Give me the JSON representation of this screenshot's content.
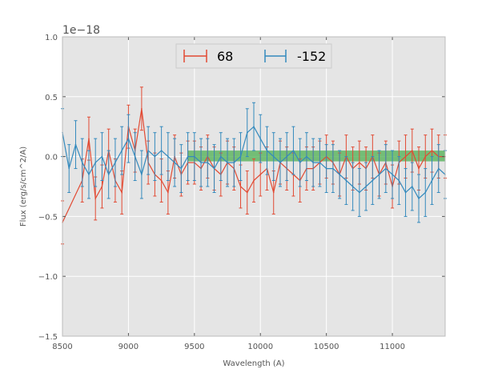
{
  "chart_data": {
    "type": "line",
    "title": "",
    "xlabel": "Wavelength (A)",
    "ylabel": "Flux (erg/s/cm^2/A)",
    "offset_label": "1e−18",
    "xlim": [
      8500,
      11400
    ],
    "ylim": [
      -1.5,
      1.0
    ],
    "xticks": [
      8500,
      9000,
      9500,
      10000,
      10500,
      11000
    ],
    "xtick_labels": [
      "8500",
      "9000",
      "9500",
      "10000",
      "10500",
      "11000"
    ],
    "yticks": [
      1.0,
      0.5,
      0.0,
      -0.5,
      -1.0,
      -1.5
    ],
    "ytick_labels": [
      "1.0",
      "0.5",
      "0.0",
      "−0.5",
      "−1.0",
      "−1.5"
    ],
    "grid": true,
    "legend_placement": "upper-center",
    "band": {
      "x_start": 9450,
      "x_end": 11400,
      "y_low": -0.04,
      "y_high": 0.05,
      "color": "#4caf50"
    },
    "series": [
      {
        "name": "68",
        "color": "#e24a33",
        "error": 0.18,
        "x": [
          8500,
          8650,
          8700,
          8750,
          8800,
          8850,
          8900,
          8950,
          9000,
          9050,
          9100,
          9150,
          9200,
          9250,
          9300,
          9350,
          9400,
          9450,
          9500,
          9550,
          9600,
          9650,
          9700,
          9750,
          9800,
          9850,
          9900,
          9950,
          10000,
          10050,
          10100,
          10150,
          10200,
          10250,
          10300,
          10350,
          10400,
          10450,
          10500,
          10550,
          10600,
          10650,
          10700,
          10750,
          10800,
          10850,
          10900,
          10950,
          11000,
          11050,
          11100,
          11150,
          11200,
          11250,
          11300,
          11350,
          11400
        ],
        "y": [
          -0.55,
          -0.2,
          0.15,
          -0.35,
          -0.25,
          0.05,
          -0.2,
          -0.3,
          0.25,
          0.05,
          0.4,
          -0.05,
          -0.15,
          -0.2,
          -0.3,
          0.0,
          -0.15,
          -0.05,
          -0.05,
          -0.1,
          0.0,
          -0.1,
          -0.15,
          -0.05,
          -0.1,
          -0.25,
          -0.3,
          -0.2,
          -0.15,
          -0.1,
          -0.3,
          -0.05,
          -0.1,
          -0.15,
          -0.2,
          -0.1,
          -0.1,
          -0.05,
          0.0,
          -0.05,
          -0.15,
          0.0,
          -0.1,
          -0.05,
          -0.1,
          0.0,
          -0.15,
          -0.05,
          -0.25,
          -0.05,
          0.0,
          0.05,
          -0.1,
          0.0,
          0.05,
          0.0,
          0.0
        ]
      },
      {
        "name": "-152",
        "color": "#348abd",
        "error": 0.2,
        "x": [
          8500,
          8550,
          8600,
          8650,
          8700,
          8750,
          8800,
          8850,
          8900,
          8950,
          9000,
          9050,
          9100,
          9150,
          9200,
          9250,
          9300,
          9350,
          9400,
          9450,
          9500,
          9550,
          9600,
          9650,
          9700,
          9750,
          9800,
          9850,
          9900,
          9950,
          10000,
          10050,
          10100,
          10150,
          10200,
          10250,
          10300,
          10350,
          10400,
          10450,
          10500,
          10550,
          10600,
          10650,
          10700,
          10750,
          10800,
          10850,
          10900,
          10950,
          11000,
          11050,
          11100,
          11150,
          11200,
          11250,
          11300,
          11350,
          11400
        ],
        "y": [
          0.2,
          -0.1,
          0.1,
          -0.05,
          -0.15,
          -0.05,
          0.0,
          -0.15,
          -0.05,
          0.05,
          0.15,
          0.0,
          -0.15,
          0.05,
          0.0,
          0.05,
          0.0,
          -0.05,
          -0.1,
          0.0,
          0.0,
          -0.05,
          -0.05,
          -0.1,
          0.0,
          -0.05,
          -0.05,
          0.0,
          0.2,
          0.25,
          0.15,
          0.05,
          0.0,
          -0.05,
          0.0,
          0.05,
          -0.05,
          0.0,
          -0.05,
          -0.05,
          -0.1,
          -0.1,
          -0.15,
          -0.2,
          -0.25,
          -0.3,
          -0.25,
          -0.2,
          -0.15,
          -0.1,
          -0.15,
          -0.2,
          -0.3,
          -0.25,
          -0.35,
          -0.3,
          -0.2,
          -0.1,
          -0.15
        ]
      }
    ]
  }
}
